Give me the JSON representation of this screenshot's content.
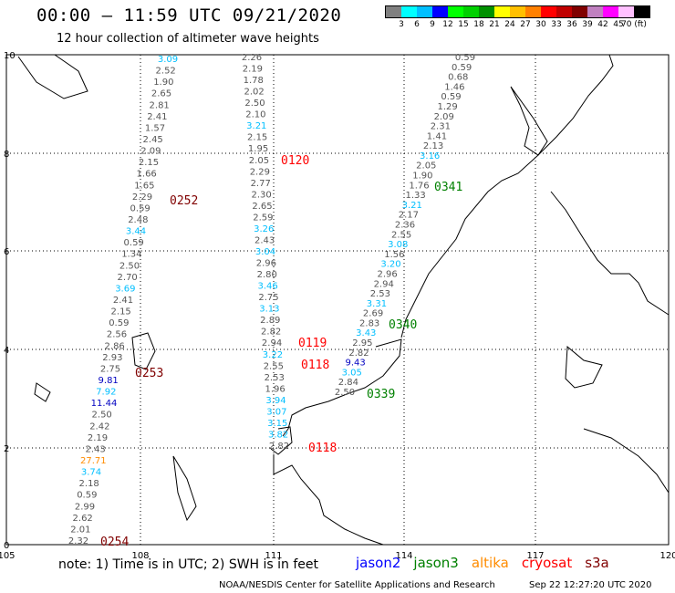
{
  "header": {
    "title": "00:00 – 11:59 UTC 09/21/2020",
    "subtitle": "12 hour collection of altimeter wave heights"
  },
  "legend": {
    "colors": [
      "#808080",
      "#00ffff",
      "#00bfff",
      "#0000ff",
      "#00ff00",
      "#00d000",
      "#009000",
      "#ffff00",
      "#ffc000",
      "#ff8000",
      "#ff0000",
      "#c00000",
      "#800000",
      "#c080c0",
      "#ff00ff",
      "#ffc0ff",
      "#000000"
    ],
    "ticks": [
      "3",
      "6",
      "9",
      "12",
      "15",
      "18",
      "21",
      "24",
      "27",
      "30",
      "33",
      "36",
      "39",
      "42",
      "45",
      "70 (ft)"
    ]
  },
  "axes": {
    "x_ticks": [
      "105",
      "108",
      "111",
      "114",
      "117",
      "120"
    ],
    "y_ticks": [
      "0",
      "2",
      "4",
      "6",
      "8",
      "10"
    ]
  },
  "tracks": [
    {
      "values": [
        {
          "v": "3.09",
          "c": "#00bfff"
        },
        {
          "v": "2.52",
          "c": "#555555"
        },
        {
          "v": "1.90",
          "c": "#555555"
        },
        {
          "v": "2.65",
          "c": "#555555"
        },
        {
          "v": "2.81",
          "c": "#555555"
        },
        {
          "v": "2.41",
          "c": "#555555"
        },
        {
          "v": "1.57",
          "c": "#555555"
        },
        {
          "v": "2.45",
          "c": "#555555"
        },
        {
          "v": "2.09",
          "c": "#555555"
        },
        {
          "v": "2.15",
          "c": "#555555"
        },
        {
          "v": "1.66",
          "c": "#555555"
        },
        {
          "v": "1.65",
          "c": "#555555"
        },
        {
          "v": "2.29",
          "c": "#555555"
        },
        {
          "v": "0.59",
          "c": "#555555"
        },
        {
          "v": "2.48",
          "c": "#555555"
        },
        {
          "v": "3.44",
          "c": "#00bfff"
        },
        {
          "v": "0.59",
          "c": "#555555"
        },
        {
          "v": "1.34",
          "c": "#555555"
        },
        {
          "v": "2.50",
          "c": "#555555"
        },
        {
          "v": "2.70",
          "c": "#555555"
        },
        {
          "v": "3.69",
          "c": "#00bfff"
        },
        {
          "v": "2.41",
          "c": "#555555"
        },
        {
          "v": "2.15",
          "c": "#555555"
        },
        {
          "v": "0.59",
          "c": "#555555"
        },
        {
          "v": "2.56",
          "c": "#555555"
        },
        {
          "v": "2.86",
          "c": "#555555"
        },
        {
          "v": "2.93",
          "c": "#555555"
        },
        {
          "v": "2.75",
          "c": "#555555"
        },
        {
          "v": "9.81",
          "c": "#0000c0"
        },
        {
          "v": "7.92",
          "c": "#00bfff"
        },
        {
          "v": "11.44",
          "c": "#0000c0"
        },
        {
          "v": "2.50",
          "c": "#555555"
        },
        {
          "v": "2.42",
          "c": "#555555"
        },
        {
          "v": "2.19",
          "c": "#555555"
        },
        {
          "v": "2.43",
          "c": "#555555"
        },
        {
          "v": "27.71",
          "c": "#ff8c00"
        },
        {
          "v": "3.74",
          "c": "#00bfff"
        },
        {
          "v": "2.18",
          "c": "#555555"
        },
        {
          "v": "0.59",
          "c": "#555555"
        },
        {
          "v": "2.99",
          "c": "#555555"
        },
        {
          "v": "2.62",
          "c": "#555555"
        },
        {
          "v": "2.01",
          "c": "#555555"
        },
        {
          "v": "2.32",
          "c": "#555555"
        }
      ]
    },
    {
      "values": [
        {
          "v": "2.26",
          "c": "#555555"
        },
        {
          "v": "2.19",
          "c": "#555555"
        },
        {
          "v": "1.78",
          "c": "#555555"
        },
        {
          "v": "2.02",
          "c": "#555555"
        },
        {
          "v": "2.50",
          "c": "#555555"
        },
        {
          "v": "2.10",
          "c": "#555555"
        },
        {
          "v": "3.21",
          "c": "#00bfff"
        },
        {
          "v": "2.15",
          "c": "#555555"
        },
        {
          "v": "1.95",
          "c": "#555555"
        },
        {
          "v": "2.05",
          "c": "#555555"
        },
        {
          "v": "2.29",
          "c": "#555555"
        },
        {
          "v": "2.77",
          "c": "#555555"
        },
        {
          "v": "2.30",
          "c": "#555555"
        },
        {
          "v": "2.65",
          "c": "#555555"
        },
        {
          "v": "2.59",
          "c": "#555555"
        },
        {
          "v": "3.26",
          "c": "#00bfff"
        },
        {
          "v": "2.43",
          "c": "#555555"
        },
        {
          "v": "3.04",
          "c": "#00bfff"
        },
        {
          "v": "2.96",
          "c": "#555555"
        },
        {
          "v": "2.80",
          "c": "#555555"
        },
        {
          "v": "3.46",
          "c": "#00bfff"
        },
        {
          "v": "2.75",
          "c": "#555555"
        },
        {
          "v": "3.13",
          "c": "#00bfff"
        },
        {
          "v": "2.89",
          "c": "#555555"
        },
        {
          "v": "2.82",
          "c": "#555555"
        },
        {
          "v": "2.94",
          "c": "#555555"
        },
        {
          "v": "3.22",
          "c": "#00bfff"
        },
        {
          "v": "2.55",
          "c": "#555555"
        },
        {
          "v": "2.53",
          "c": "#555555"
        },
        {
          "v": "1.96",
          "c": "#555555"
        },
        {
          "v": "3.94",
          "c": "#00bfff"
        },
        {
          "v": "3.07",
          "c": "#00bfff"
        },
        {
          "v": "3.15",
          "c": "#00bfff"
        },
        {
          "v": "3.82",
          "c": "#00bfff"
        },
        {
          "v": "2.82",
          "c": "#555555"
        }
      ]
    },
    {
      "values": [
        {
          "v": "0.59",
          "c": "#555555"
        },
        {
          "v": "0.59",
          "c": "#555555"
        },
        {
          "v": "0.68",
          "c": "#555555"
        },
        {
          "v": "1.46",
          "c": "#555555"
        },
        {
          "v": "0.59",
          "c": "#555555"
        },
        {
          "v": "1.29",
          "c": "#555555"
        },
        {
          "v": "2.09",
          "c": "#555555"
        },
        {
          "v": "2.31",
          "c": "#555555"
        },
        {
          "v": "1.41",
          "c": "#555555"
        },
        {
          "v": "2.13",
          "c": "#555555"
        },
        {
          "v": "3.16",
          "c": "#00bfff"
        },
        {
          "v": "2.05",
          "c": "#555555"
        },
        {
          "v": "1.90",
          "c": "#555555"
        },
        {
          "v": "1.76",
          "c": "#555555"
        },
        {
          "v": "1.33",
          "c": "#555555"
        },
        {
          "v": "3.21",
          "c": "#00bfff"
        },
        {
          "v": "2.17",
          "c": "#555555"
        },
        {
          "v": "2.36",
          "c": "#555555"
        },
        {
          "v": "2.55",
          "c": "#555555"
        },
        {
          "v": "3.08",
          "c": "#00bfff"
        },
        {
          "v": "1.56",
          "c": "#555555"
        },
        {
          "v": "3.20",
          "c": "#00bfff"
        },
        {
          "v": "2.96",
          "c": "#555555"
        },
        {
          "v": "2.94",
          "c": "#555555"
        },
        {
          "v": "2.53",
          "c": "#555555"
        },
        {
          "v": "3.31",
          "c": "#00bfff"
        },
        {
          "v": "2.69",
          "c": "#555555"
        },
        {
          "v": "2.83",
          "c": "#555555"
        },
        {
          "v": "3.43",
          "c": "#00bfff"
        },
        {
          "v": "2.95",
          "c": "#555555"
        },
        {
          "v": "2.82",
          "c": "#555555"
        },
        {
          "v": "9.43",
          "c": "#0000c0"
        },
        {
          "v": "3.05",
          "c": "#00bfff"
        },
        {
          "v": "2.84",
          "c": "#555555"
        },
        {
          "v": "2.50",
          "c": "#555555"
        }
      ]
    }
  ],
  "pass_labels": [
    {
      "text": "0252",
      "color": "#800000"
    },
    {
      "text": "0253",
      "color": "#800000"
    },
    {
      "text": "0254",
      "color": "#800000"
    },
    {
      "text": "0120",
      "color": "#ff0000"
    },
    {
      "text": "0119",
      "color": "#ff0000"
    },
    {
      "text": "0118",
      "color": "#ff0000"
    },
    {
      "text": "0118",
      "color": "#ff0000"
    },
    {
      "text": "0341",
      "color": "#008000"
    },
    {
      "text": "0340",
      "color": "#008000"
    },
    {
      "text": "0339",
      "color": "#008000"
    }
  ],
  "footer": {
    "note": "note:  1) Time is in UTC;  2) SWH is in feet",
    "satellites": [
      {
        "name": "jason2",
        "color": "#0000ff"
      },
      {
        "name": "jason3",
        "color": "#008000"
      },
      {
        "name": "altika",
        "color": "#ff8c00"
      },
      {
        "name": "cryosat",
        "color": "#ff0000"
      },
      {
        "name": "s3a",
        "color": "#800000"
      }
    ],
    "credit": "NOAA/NESDIS Center for Satellite Applications and Research",
    "timestamp": "Sep 22 12:27:20 UTC 2020"
  }
}
